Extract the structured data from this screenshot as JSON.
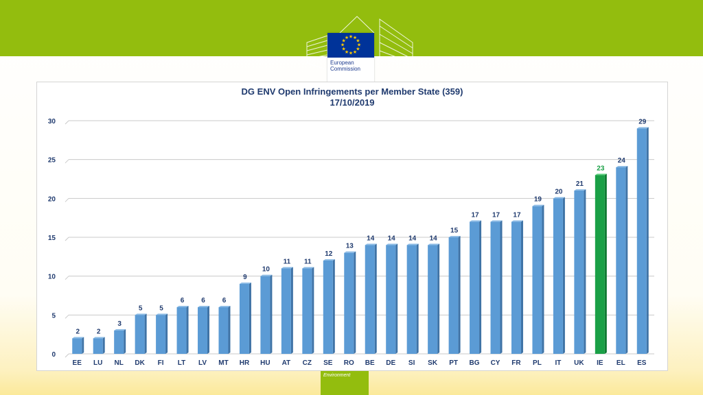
{
  "header": {
    "logo": {
      "icon": "eu-flag-stars-icon",
      "line1": "European",
      "line2": "Commission"
    }
  },
  "colors": {
    "band": "#93bd0e",
    "bar": "#5b9bd5",
    "bar_highlight": "#1aa046",
    "text": "#1f3a6e"
  },
  "chart_data": {
    "type": "bar",
    "title": "DG ENV Open Infringements per Member State (359)",
    "subtitle": "17/10/2019",
    "xlabel": "",
    "ylabel": "",
    "ylim": [
      0,
      30
    ],
    "yticks": [
      0,
      5,
      10,
      15,
      20,
      25,
      30
    ],
    "grid": true,
    "legend": "none",
    "categories": [
      "EE",
      "LU",
      "NL",
      "DK",
      "FI",
      "LT",
      "LV",
      "MT",
      "HR",
      "HU",
      "AT",
      "CZ",
      "SE",
      "RO",
      "BE",
      "DE",
      "SI",
      "SK",
      "PT",
      "BG",
      "CY",
      "FR",
      "PL",
      "IT",
      "UK",
      "IE",
      "EL",
      "ES"
    ],
    "values": [
      2,
      2,
      3,
      5,
      5,
      6,
      6,
      6,
      9,
      10,
      11,
      11,
      12,
      13,
      14,
      14,
      14,
      14,
      15,
      17,
      17,
      17,
      19,
      20,
      21,
      23,
      24,
      29
    ],
    "highlight": "IE"
  },
  "footer": {
    "label": "Environment"
  }
}
